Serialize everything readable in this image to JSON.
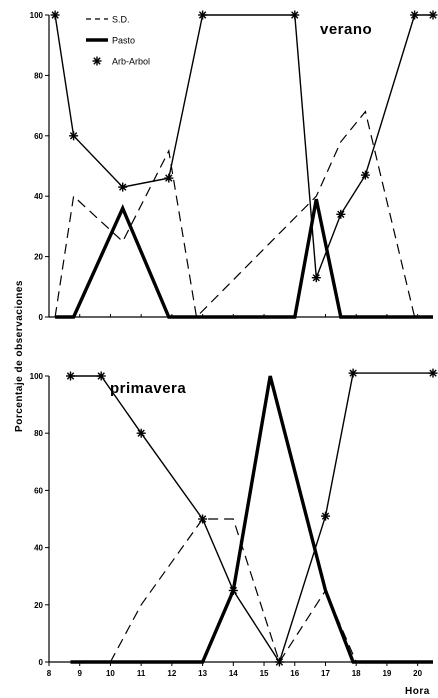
{
  "chart_data": [
    {
      "type": "line",
      "title": "verano",
      "xlabel": "",
      "ylabel": "Porcentaje de observaciones",
      "xlim": [
        8,
        20.5
      ],
      "ylim": [
        0,
        100
      ],
      "yticks": [
        "0",
        "20",
        "40",
        "60",
        "80",
        "100"
      ],
      "xticks": [],
      "legend_position": "top-left",
      "series": [
        {
          "name": "S.D.",
          "style": "dashed",
          "x": [
            8.2,
            8.8,
            10.4,
            11.9,
            12.8,
            16.7,
            17.5,
            18.3,
            19.9
          ],
          "y": [
            0,
            40,
            25,
            55,
            0,
            40,
            58,
            68,
            0
          ]
        },
        {
          "name": "Pasto",
          "style": "thick",
          "x": [
            8.2,
            8.8,
            10.4,
            11.9,
            13.0,
            16.0,
            16.7,
            17.5,
            20.5
          ],
          "y": [
            0,
            0,
            36,
            0,
            0,
            0,
            39,
            0,
            0
          ]
        },
        {
          "name": "Arb-Arbol",
          "style": "starred",
          "x": [
            8.2,
            8.8,
            10.4,
            11.9,
            13.0,
            16.0,
            16.7,
            17.5,
            18.3,
            19.9,
            20.5
          ],
          "y": [
            100,
            60,
            43,
            46,
            100,
            100,
            13,
            34,
            47,
            100,
            100
          ]
        }
      ]
    },
    {
      "type": "line",
      "title": "primavera",
      "xlabel": "Hora",
      "ylabel": "Porcentaje de observaciones",
      "xlim": [
        8,
        20.5
      ],
      "ylim": [
        0,
        100
      ],
      "xticks": [
        "8",
        "9",
        "10",
        "11",
        "12",
        "13",
        "14",
        "15",
        "16",
        "17",
        "18",
        "19",
        "20"
      ],
      "yticks": [
        "0",
        "20",
        "40",
        "60",
        "80",
        "100"
      ],
      "series": [
        {
          "name": "S.D.",
          "style": "dashed",
          "x": [
            10.0,
            11.0,
            13.0,
            14.0,
            15.5,
            17.0,
            18.0
          ],
          "y": [
            0,
            20,
            50,
            50,
            0,
            25,
            0
          ]
        },
        {
          "name": "Pasto",
          "style": "thick",
          "x": [
            8.7,
            13.0,
            14.0,
            15.2,
            17.0,
            17.9,
            20.5
          ],
          "y": [
            0,
            0,
            25,
            100,
            25,
            0,
            0
          ]
        },
        {
          "name": "Arb-Arbol",
          "style": "starred",
          "x": [
            8.7,
            9.7,
            11.0,
            13.0,
            14.0,
            15.5,
            17.0,
            17.9,
            20.5
          ],
          "y": [
            100,
            100,
            80,
            50,
            25,
            0,
            51,
            101,
            101
          ]
        }
      ]
    }
  ]
}
